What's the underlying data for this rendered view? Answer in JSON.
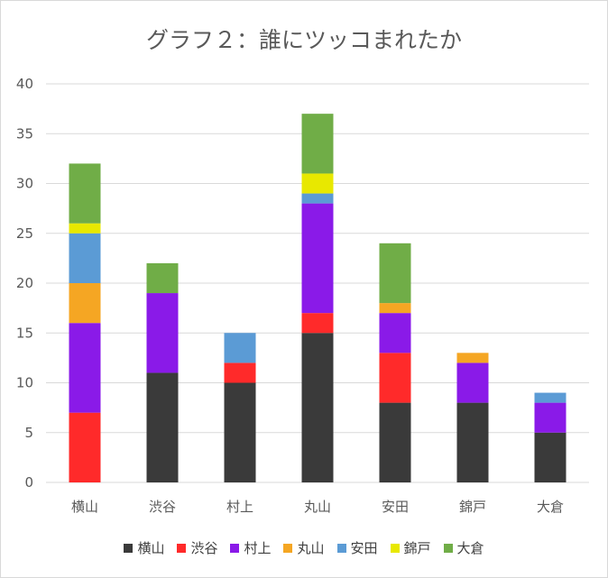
{
  "chart_data": {
    "type": "bar",
    "stacked": true,
    "title": "グラフ２：誰にツッコまれたか",
    "xlabel": "",
    "ylabel": "",
    "ylim": [
      0,
      40
    ],
    "yticks": [
      "0",
      "5",
      "10",
      "15",
      "20",
      "25",
      "30",
      "35",
      "40"
    ],
    "grid": true,
    "legend_position": "bottom",
    "categories": [
      "横山",
      "渋谷",
      "村上",
      "丸山",
      "安田",
      "錦戸",
      "大倉"
    ],
    "series": [
      {
        "name": "横山",
        "color": "#3a3a3a",
        "values": [
          0,
          11,
          10,
          15,
          8,
          8,
          5
        ]
      },
      {
        "name": "渋谷",
        "color": "#ff2a2a",
        "values": [
          7,
          0,
          2,
          2,
          5,
          0,
          0
        ]
      },
      {
        "name": "村上",
        "color": "#8a1ae8",
        "values": [
          9,
          8,
          0,
          11,
          4,
          4,
          3
        ]
      },
      {
        "name": "丸山",
        "color": "#f5a623",
        "values": [
          4,
          0,
          0,
          0,
          1,
          1,
          0
        ]
      },
      {
        "name": "安田",
        "color": "#5b9bd5",
        "values": [
          5,
          0,
          3,
          1,
          0,
          0,
          1
        ]
      },
      {
        "name": "錦戸",
        "color": "#e8e800",
        "values": [
          1,
          0,
          0,
          2,
          0,
          0,
          0
        ]
      },
      {
        "name": "大倉",
        "color": "#70ad47",
        "values": [
          6,
          3,
          0,
          6,
          6,
          0,
          0
        ]
      }
    ]
  }
}
